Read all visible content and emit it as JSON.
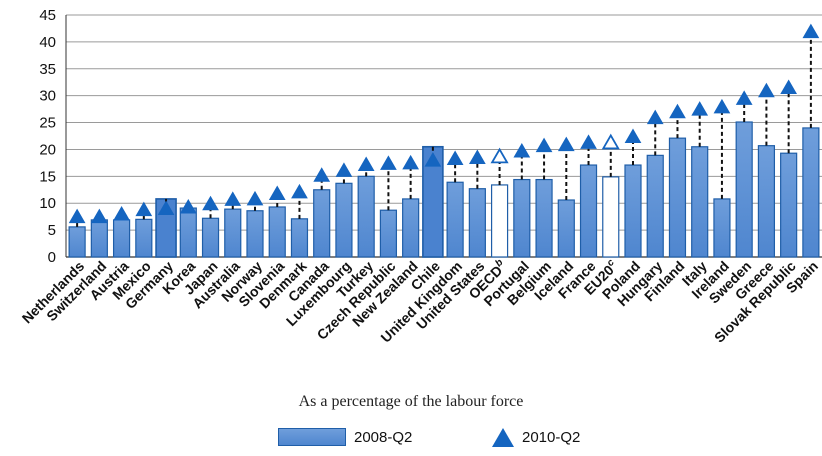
{
  "chart_data": {
    "type": "bar",
    "title": "",
    "xlabel": "",
    "ylabel": "",
    "caption": "As a percentage of the labour force",
    "ylim": [
      0,
      45
    ],
    "yticks": [
      0,
      5,
      10,
      15,
      20,
      25,
      30,
      35,
      40,
      45
    ],
    "grid": true,
    "legend_position": "bottom",
    "categories": [
      "Netherlands",
      "Switzerland",
      "Austria",
      "Mexico",
      "Germany",
      "Korea",
      "Japan",
      "Australia",
      "Norway",
      "Slovenia",
      "Denmark",
      "Canada",
      "Luxembourg",
      "Turkey",
      "Czech Republic",
      "New Zealand",
      "Chile",
      "United Kingdom",
      "United States",
      "OECD",
      "Portugal",
      "Belgium",
      "Iceland",
      "France",
      "EU20",
      "Poland",
      "Hungary",
      "Finland",
      "Italy",
      "Ireland",
      "Sweden",
      "Greece",
      "Slovak Republic",
      "Spain"
    ],
    "category_superscripts": {
      "OECD": "b",
      "EU20": "c"
    },
    "highlighted_categories": [
      "Germany",
      "Chile"
    ],
    "aggregate_categories": [
      "OECD",
      "EU20"
    ],
    "series": [
      {
        "name": "2008-Q2",
        "mark": "bar",
        "values": [
          5.6,
          6.9,
          6.9,
          7.0,
          10.8,
          9.1,
          7.2,
          8.9,
          8.6,
          9.3,
          7.1,
          12.5,
          13.7,
          15.0,
          8.7,
          10.8,
          20.5,
          13.9,
          12.7,
          13.4,
          14.4,
          14.4,
          10.6,
          17.1,
          14.9,
          17.1,
          18.9,
          22.1,
          20.5,
          10.8,
          25.1,
          20.7,
          19.3,
          24.0
        ]
      },
      {
        "name": "2010-Q2",
        "mark": "triangle",
        "values": [
          7.6,
          7.6,
          8.1,
          8.9,
          9.1,
          9.4,
          10.0,
          10.8,
          10.9,
          11.9,
          12.2,
          15.3,
          16.2,
          17.3,
          17.5,
          17.6,
          18.1,
          18.4,
          18.6,
          18.8,
          19.8,
          20.8,
          21.0,
          21.4,
          21.4,
          22.5,
          26.0,
          27.1,
          27.6,
          28.0,
          29.6,
          31.0,
          31.6,
          42.0
        ]
      }
    ],
    "colors": {
      "bar": "#5b8fd6",
      "bar_edge": "#1f5ea8",
      "highlight_bar": "#4a82cf",
      "marker": "#1565c0",
      "grid": "#9a9a9a",
      "axis": "#333333"
    }
  },
  "legend": {
    "bar_label": "2008-Q2",
    "marker_label": "2010-Q2"
  }
}
